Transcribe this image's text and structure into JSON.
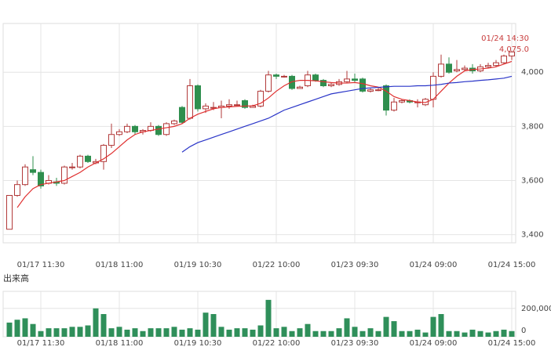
{
  "chart_data": [
    {
      "type": "candlestick",
      "categories": [
        null,
        null,
        null,
        null,
        "01/17 11:30",
        null,
        null,
        null,
        null,
        null,
        null,
        null,
        null,
        null,
        "01/18 11:00",
        null,
        null,
        null,
        null,
        null,
        null,
        null,
        null,
        null,
        "01/19 10:30",
        null,
        null,
        null,
        null,
        null,
        null,
        null,
        null,
        null,
        "01/22 10:00",
        null,
        null,
        null,
        null,
        null,
        null,
        null,
        null,
        null,
        "01/23 09:30",
        null,
        null,
        null,
        null,
        null,
        null,
        null,
        null,
        null,
        "01/24 09:00",
        null,
        null,
        null,
        null,
        null,
        null,
        null,
        null,
        null,
        "01/24 15:00"
      ],
      "open": [
        3420,
        3545,
        3585,
        3640,
        3630,
        3590,
        3595,
        3590,
        3650,
        3650,
        3690,
        3665,
        3670,
        3730,
        3770,
        3780,
        3800,
        3780,
        3785,
        3800,
        3770,
        3810,
        3870,
        3830,
        3950,
        3865,
        3870,
        3870,
        3875,
        3880,
        3895,
        3870,
        3875,
        3930,
        3990,
        3985,
        3985,
        3940,
        3950,
        3990,
        3970,
        3950,
        3955,
        3965,
        3975,
        3975,
        3930,
        3935,
        3950,
        3860,
        3890,
        3895,
        3890,
        3880,
        3900,
        3985,
        4030,
        4005,
        4010,
        4015,
        4005,
        4020,
        4025,
        4035,
        4060
      ],
      "high": [
        3545,
        3600,
        3660,
        3690,
        3640,
        3620,
        3610,
        3655,
        3665,
        3695,
        3695,
        3680,
        3735,
        3810,
        3790,
        3810,
        3805,
        3790,
        3815,
        3805,
        3815,
        3825,
        3875,
        3975,
        3955,
        3885,
        3890,
        3895,
        3900,
        3895,
        3900,
        3880,
        3935,
        4005,
        3995,
        3990,
        3990,
        3950,
        4005,
        3995,
        3975,
        3960,
        3975,
        4005,
        3995,
        3980,
        3940,
        3945,
        3955,
        3905,
        3900,
        3900,
        3900,
        3905,
        4000,
        4065,
        4055,
        4045,
        4025,
        4030,
        4030,
        4035,
        4045,
        4065,
        4080
      ],
      "low": [
        3420,
        3540,
        3580,
        3620,
        3570,
        3585,
        3580,
        3585,
        3640,
        3645,
        3665,
        3660,
        3640,
        3720,
        3765,
        3775,
        3770,
        3770,
        3780,
        3765,
        3765,
        3805,
        3810,
        3825,
        3855,
        3850,
        3860,
        3830,
        3865,
        3875,
        3865,
        3870,
        3870,
        3925,
        3975,
        3980,
        3935,
        3940,
        3945,
        3965,
        3945,
        3945,
        3950,
        3960,
        3960,
        3925,
        3925,
        3930,
        3840,
        3855,
        3885,
        3885,
        3870,
        3875,
        3870,
        3980,
        3995,
        4000,
        4005,
        3995,
        4000,
        4015,
        4020,
        4030,
        4045
      ],
      "close": [
        3545,
        3585,
        3650,
        3630,
        3580,
        3600,
        3590,
        3650,
        3650,
        3690,
        3670,
        3670,
        3730,
        3770,
        3780,
        3800,
        3780,
        3785,
        3800,
        3770,
        3810,
        3820,
        3815,
        3950,
        3865,
        3875,
        3870,
        3875,
        3880,
        3880,
        3870,
        3875,
        3930,
        3990,
        3985,
        3985,
        3940,
        3945,
        3990,
        3970,
        3950,
        3955,
        3965,
        3975,
        3970,
        3930,
        3935,
        3935,
        3860,
        3890,
        3895,
        3890,
        3890,
        3900,
        3985,
        4030,
        4000,
        4010,
        4015,
        4005,
        4020,
        4025,
        4035,
        4060,
        4075
      ],
      "up_color": "#b23a3a",
      "down_color": "#2f8f4e",
      "lines": [
        {
          "color": "#e03030",
          "values": [
            null,
            3500,
            3540,
            3570,
            3585,
            3590,
            3595,
            3600,
            3615,
            3630,
            3650,
            3665,
            3680,
            3700,
            3725,
            3750,
            3770,
            3780,
            3785,
            3790,
            3795,
            3800,
            3810,
            3830,
            3845,
            3855,
            3865,
            3870,
            3872,
            3874,
            3875,
            3876,
            3885,
            3905,
            3930,
            3950,
            3965,
            3970,
            3970,
            3968,
            3965,
            3962,
            3960,
            3960,
            3962,
            3958,
            3950,
            3945,
            3930,
            3910,
            3900,
            3895,
            3890,
            3888,
            3900,
            3930,
            3960,
            3985,
            4005,
            4010,
            4012,
            4015,
            4020,
            4030,
            4040
          ]
        },
        {
          "color": "#2a35c8",
          "values": [
            null,
            null,
            null,
            null,
            null,
            null,
            null,
            null,
            null,
            null,
            null,
            null,
            null,
            null,
            null,
            null,
            null,
            null,
            null,
            null,
            null,
            null,
            3705,
            3725,
            3740,
            3750,
            3760,
            3770,
            3780,
            3790,
            3800,
            3810,
            3820,
            3830,
            3845,
            3860,
            3870,
            3880,
            3890,
            3900,
            3910,
            3920,
            3925,
            3930,
            3935,
            3940,
            3942,
            3944,
            3946,
            3948,
            3948,
            3948,
            3950,
            3950,
            3952,
            3955,
            3960,
            3962,
            3965,
            3967,
            3970,
            3972,
            3975,
            3978,
            3985
          ]
        }
      ],
      "ylim": [
        3370,
        4180
      ],
      "yticks": [
        {
          "value": 3400,
          "label": "3,400"
        },
        {
          "value": 3600,
          "label": "3,600"
        },
        {
          "value": 3800,
          "label": "3,800"
        },
        {
          "value": 4000,
          "label": "4,000"
        }
      ],
      "annotation": {
        "time": "01/24 14:30",
        "price": "4,075.0",
        "color": "#c83c3c"
      },
      "grid": true
    },
    {
      "type": "bar",
      "title": "出来高",
      "categories": [
        null,
        null,
        null,
        null,
        "01/17 11:30",
        null,
        null,
        null,
        null,
        null,
        null,
        null,
        null,
        null,
        "01/18 11:00",
        null,
        null,
        null,
        null,
        null,
        null,
        null,
        null,
        null,
        "01/19 10:30",
        null,
        null,
        null,
        null,
        null,
        null,
        null,
        null,
        null,
        "01/22 10:00",
        null,
        null,
        null,
        null,
        null,
        null,
        null,
        null,
        null,
        "01/23 09:30",
        null,
        null,
        null,
        null,
        null,
        null,
        null,
        null,
        null,
        "01/24 09:00",
        null,
        null,
        null,
        null,
        null,
        null,
        null,
        null,
        null,
        "01/24 15:00"
      ],
      "values": [
        100000,
        120000,
        130000,
        90000,
        40000,
        60000,
        60000,
        60000,
        70000,
        70000,
        80000,
        200000,
        160000,
        60000,
        70000,
        50000,
        60000,
        40000,
        60000,
        60000,
        60000,
        70000,
        50000,
        60000,
        50000,
        170000,
        160000,
        70000,
        50000,
        60000,
        60000,
        50000,
        80000,
        260000,
        60000,
        70000,
        40000,
        60000,
        90000,
        40000,
        40000,
        40000,
        60000,
        130000,
        70000,
        40000,
        60000,
        40000,
        140000,
        110000,
        40000,
        40000,
        50000,
        30000,
        140000,
        160000,
        40000,
        40000,
        30000,
        50000,
        40000,
        30000,
        40000,
        50000,
        40000
      ],
      "color": "#2f8f5a",
      "ylim": [
        0,
        320000
      ],
      "yticks": [
        0,
        {
          "value": 200000,
          "label": "200,000"
        }
      ],
      "grid": true
    }
  ]
}
